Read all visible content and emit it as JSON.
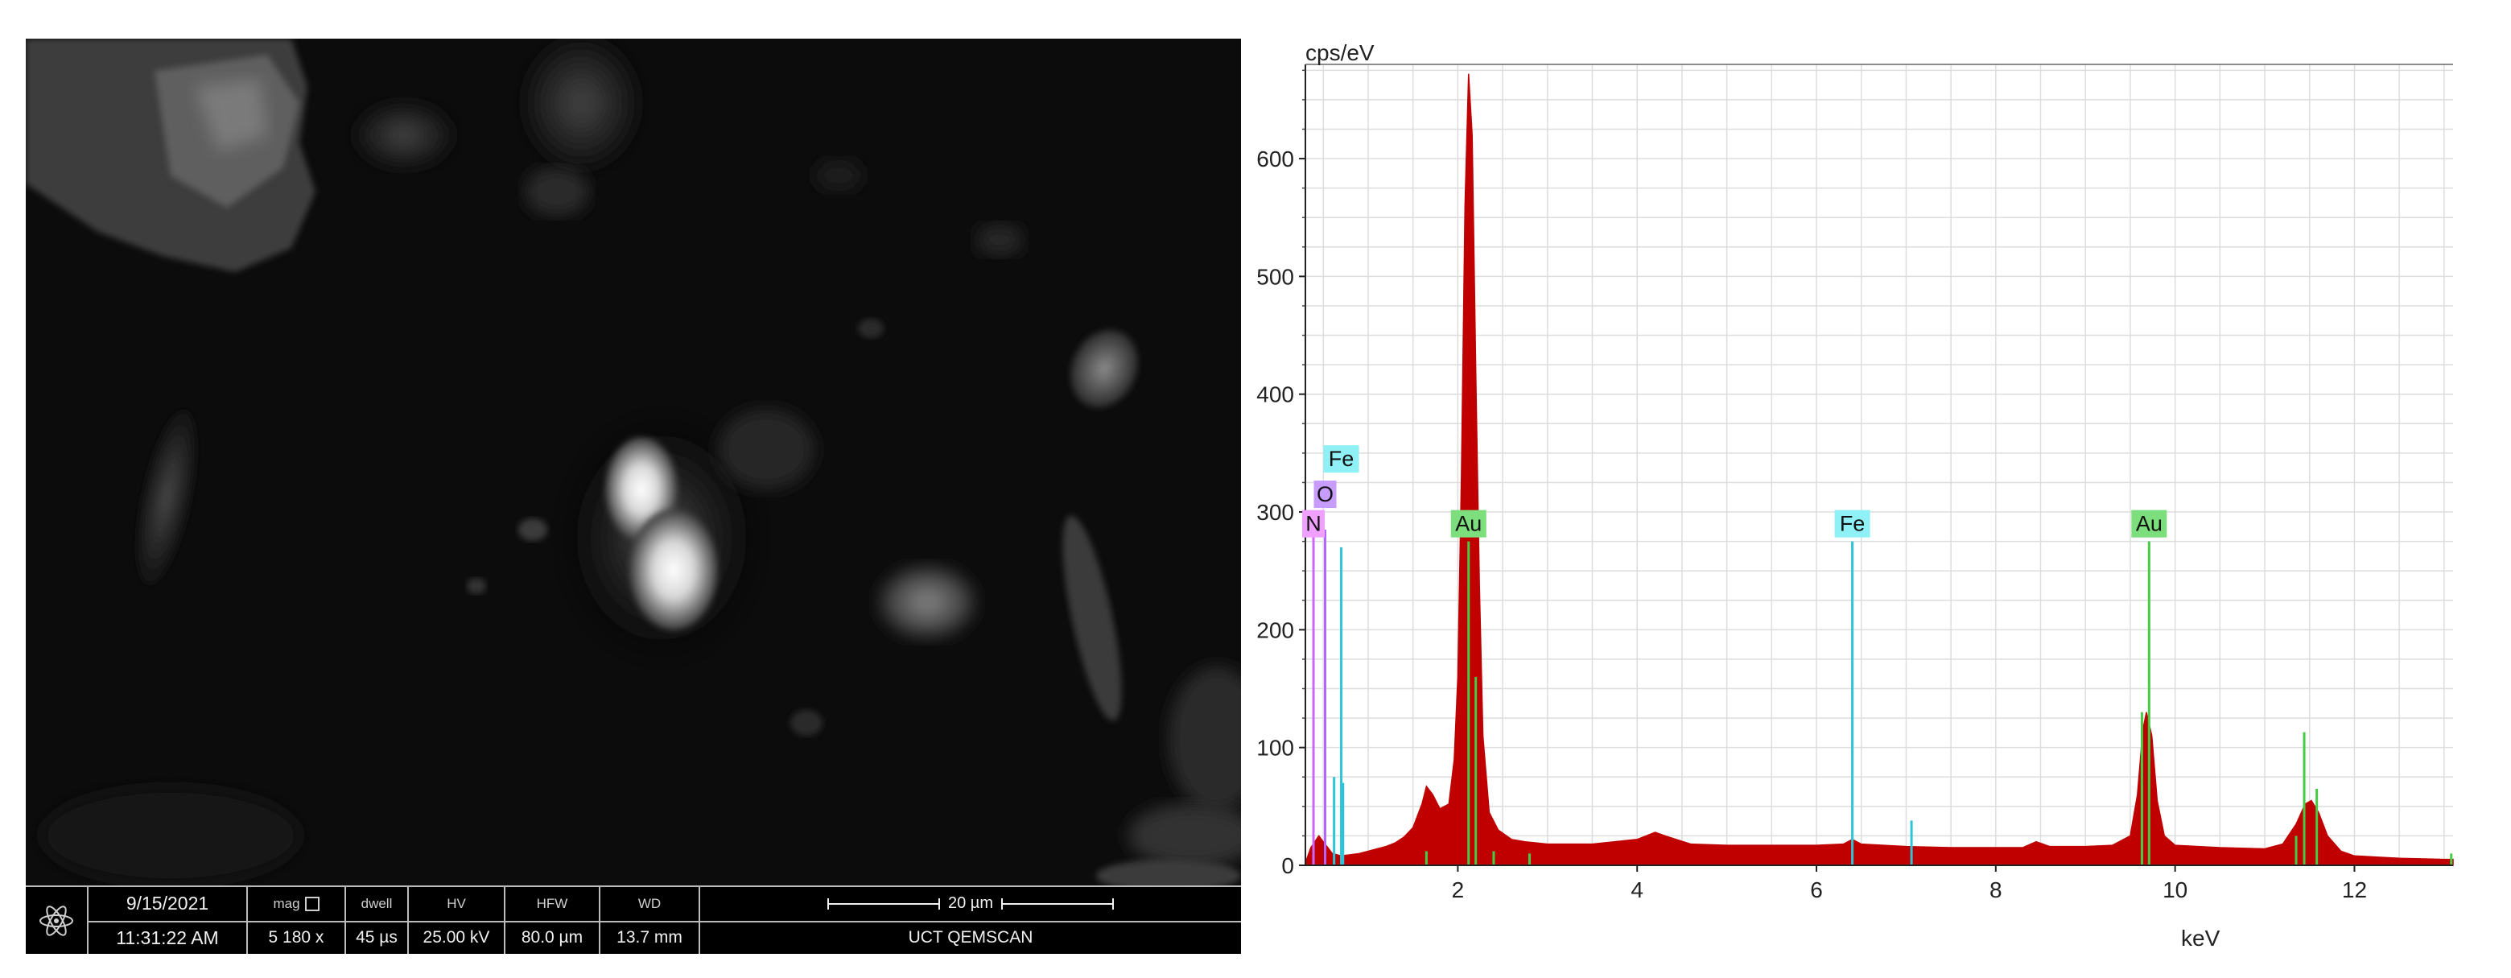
{
  "sem": {
    "databar": {
      "date": "9/15/2021",
      "time": "11:31:22 AM",
      "mag_label": "mag",
      "mag_value": "5 180 x",
      "dwell_label": "dwell",
      "dwell_value": "45 µs",
      "hv_label": "HV",
      "hv_value": "25.00 kV",
      "hfw_label": "HFW",
      "hfw_value": "80.0 µm",
      "wd_label": "WD",
      "wd_value": "13.7 mm",
      "scale_label": "20 µm",
      "instrument": "UCT QEMSCAN"
    },
    "icon": "atom-logo-icon"
  },
  "chart_data": {
    "type": "area",
    "ylabel": "cps/eV",
    "xlabel": "keV",
    "xlim": [
      0.3,
      13.1
    ],
    "ylim": [
      0,
      680
    ],
    "xticks": [
      2,
      4,
      6,
      8,
      10,
      12
    ],
    "yticks": [
      0,
      100,
      200,
      300,
      400,
      500,
      600
    ],
    "grid": true,
    "fill_color": "#c00000",
    "spectrum": [
      [
        0.3,
        2
      ],
      [
        0.36,
        15
      ],
      [
        0.45,
        25
      ],
      [
        0.52,
        18
      ],
      [
        0.6,
        10
      ],
      [
        0.7,
        8
      ],
      [
        0.8,
        9
      ],
      [
        0.9,
        10
      ],
      [
        1.0,
        12
      ],
      [
        1.1,
        14
      ],
      [
        1.2,
        16
      ],
      [
        1.3,
        19
      ],
      [
        1.4,
        24
      ],
      [
        1.5,
        32
      ],
      [
        1.6,
        52
      ],
      [
        1.65,
        67
      ],
      [
        1.72,
        60
      ],
      [
        1.8,
        48
      ],
      [
        1.9,
        52
      ],
      [
        1.96,
        90
      ],
      [
        2.0,
        160
      ],
      [
        2.04,
        330
      ],
      [
        2.08,
        560
      ],
      [
        2.12,
        672
      ],
      [
        2.16,
        620
      ],
      [
        2.2,
        420
      ],
      [
        2.24,
        240
      ],
      [
        2.28,
        110
      ],
      [
        2.35,
        45
      ],
      [
        2.45,
        30
      ],
      [
        2.6,
        22
      ],
      [
        2.75,
        20
      ],
      [
        3.0,
        18
      ],
      [
        3.5,
        18
      ],
      [
        4.0,
        22
      ],
      [
        4.2,
        28
      ],
      [
        4.35,
        24
      ],
      [
        4.6,
        18
      ],
      [
        5.0,
        17
      ],
      [
        5.5,
        17
      ],
      [
        6.0,
        17
      ],
      [
        6.3,
        18
      ],
      [
        6.4,
        22
      ],
      [
        6.5,
        18
      ],
      [
        7.0,
        16
      ],
      [
        7.5,
        15
      ],
      [
        8.0,
        15
      ],
      [
        8.3,
        15
      ],
      [
        8.45,
        20
      ],
      [
        8.6,
        16
      ],
      [
        9.0,
        16
      ],
      [
        9.3,
        17
      ],
      [
        9.5,
        25
      ],
      [
        9.58,
        60
      ],
      [
        9.64,
        115
      ],
      [
        9.68,
        130
      ],
      [
        9.74,
        110
      ],
      [
        9.8,
        55
      ],
      [
        9.88,
        25
      ],
      [
        10.0,
        17
      ],
      [
        10.5,
        15
      ],
      [
        11.0,
        14
      ],
      [
        11.2,
        18
      ],
      [
        11.35,
        35
      ],
      [
        11.45,
        52
      ],
      [
        11.52,
        55
      ],
      [
        11.6,
        45
      ],
      [
        11.7,
        25
      ],
      [
        11.85,
        12
      ],
      [
        12.0,
        8
      ],
      [
        12.5,
        6
      ],
      [
        13.0,
        5
      ],
      [
        13.1,
        5
      ]
    ],
    "element_markers": [
      {
        "label": "N",
        "color": "#cc66ff",
        "lines": [
          {
            "x": 0.39,
            "y": 285
          }
        ]
      },
      {
        "label": "O",
        "color": "#b366ff",
        "lines": [
          {
            "x": 0.52,
            "y": 285
          }
        ]
      },
      {
        "label": "Fe",
        "color": "#2ec4d8",
        "lines": [
          {
            "x": 0.62,
            "y": 75
          },
          {
            "x": 0.7,
            "y": 270
          },
          {
            "x": 0.72,
            "y": 70
          },
          {
            "x": 6.4,
            "y": 275
          },
          {
            "x": 7.06,
            "y": 38
          }
        ]
      },
      {
        "label": "Au",
        "color": "#44cc44",
        "lines": [
          {
            "x": 1.65,
            "y": 12
          },
          {
            "x": 2.12,
            "y": 275
          },
          {
            "x": 2.2,
            "y": 160
          },
          {
            "x": 2.4,
            "y": 12
          },
          {
            "x": 2.8,
            "y": 10
          },
          {
            "x": 9.71,
            "y": 275
          },
          {
            "x": 9.63,
            "y": 130
          },
          {
            "x": 11.44,
            "y": 113
          },
          {
            "x": 11.58,
            "y": 65
          },
          {
            "x": 11.35,
            "y": 25
          },
          {
            "x": 13.08,
            "y": 10
          }
        ]
      }
    ],
    "peak_tags": [
      {
        "label": "Fe",
        "x": 0.7,
        "y": 345,
        "color": "#8ff0f5"
      },
      {
        "label": "O",
        "x": 0.52,
        "y": 315,
        "color": "#c89cff"
      },
      {
        "label": "N",
        "x": 0.39,
        "y": 290,
        "color": "#f0a0ff"
      },
      {
        "label": "Au",
        "x": 2.12,
        "y": 290,
        "color": "#7cde7c"
      },
      {
        "label": "Fe",
        "x": 6.4,
        "y": 290,
        "color": "#8ff0f5"
      },
      {
        "label": "Au",
        "x": 9.71,
        "y": 290,
        "color": "#7cde7c"
      }
    ]
  }
}
